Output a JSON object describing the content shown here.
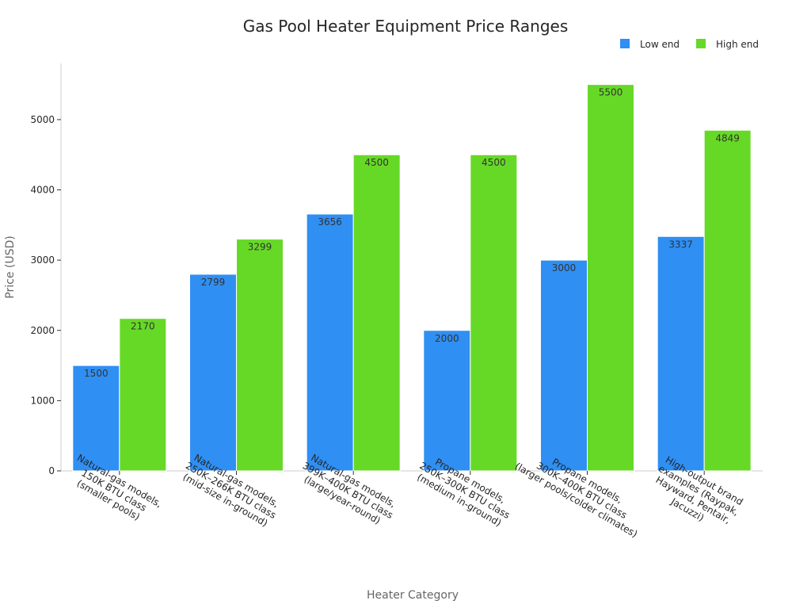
{
  "chart_data": {
    "type": "bar",
    "title": "Gas Pool Heater Equipment Price Ranges",
    "xlabel": "Heater Category",
    "ylabel": "Price (USD)",
    "ylim": [
      0,
      5800
    ],
    "yticks": [
      0,
      1000,
      2000,
      3000,
      4000,
      5000
    ],
    "grid": false,
    "legend_position": "top-right",
    "categories": [
      [
        "Natural-gas models,",
        "150K BTU class",
        "(smaller pools)"
      ],
      [
        "Natural-gas models,",
        "250K–266K BTU class",
        "(mid-size in-ground)"
      ],
      [
        "Natural-gas models,",
        "399K–400K BTU class",
        "(large/year-round)"
      ],
      [
        "Propane models,",
        "250K–300K BTU class",
        "(medium in-ground)"
      ],
      [
        "Propane models,",
        "300K–400K BTU class",
        "(larger pools/colder climates)"
      ],
      [
        "High-output brand",
        "examples (Raypak,",
        "Hayward, Pentair,",
        "Jacuzzi)"
      ]
    ],
    "series": [
      {
        "name": "Low end",
        "color": "#2f8ff3",
        "values": [
          1500,
          2799,
          3656,
          2000,
          3000,
          3337
        ]
      },
      {
        "name": "High end",
        "color": "#66d926",
        "values": [
          2170,
          3299,
          4500,
          4500,
          5500,
          4849
        ]
      }
    ]
  }
}
